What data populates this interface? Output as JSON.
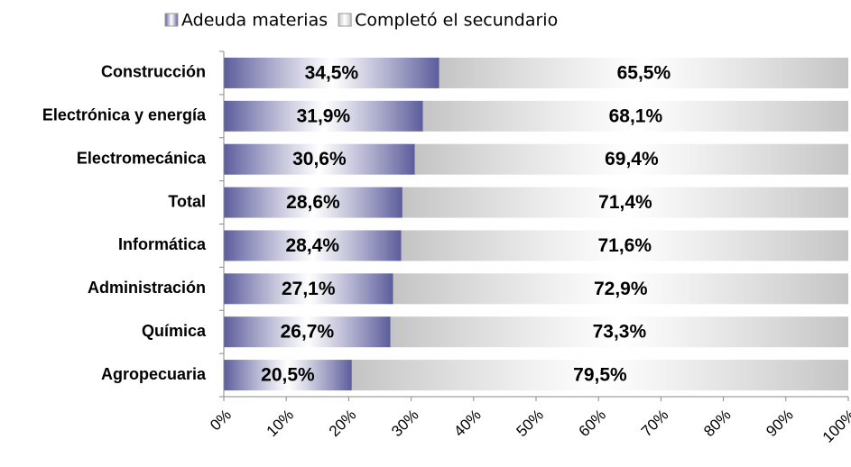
{
  "chart_data": {
    "type": "stacked_barh",
    "categories": [
      "Construcción",
      "Electrónica y energía",
      "Electromecánica",
      "Total",
      "Informática",
      "Administración",
      "Química",
      "Agropecuaria"
    ],
    "series": [
      {
        "name": "Adeuda materias",
        "color": "#5c5c9c",
        "values": [
          34.5,
          31.9,
          30.6,
          28.6,
          28.4,
          27.1,
          26.7,
          20.5
        ],
        "value_labels": [
          "34,5%",
          "31,9%",
          "30,6%",
          "28,6%",
          "28,4%",
          "27,1%",
          "26,7%",
          "20,5%"
        ]
      },
      {
        "name": "Completó el secundario",
        "color": "#c4c4c4",
        "values": [
          65.5,
          68.1,
          69.4,
          71.4,
          71.6,
          72.9,
          73.3,
          79.5
        ],
        "value_labels": [
          "65,5%",
          "68,1%",
          "69,4%",
          "71,4%",
          "71,6%",
          "72,9%",
          "73,3%",
          "79,5%"
        ]
      }
    ],
    "xlim": [
      0,
      100
    ],
    "xticks": [
      {
        "value": 0,
        "label": "0%"
      },
      {
        "value": 10,
        "label": "10%"
      },
      {
        "value": 20,
        "label": "20%"
      },
      {
        "value": 30,
        "label": "30%"
      },
      {
        "value": 40,
        "label": "40%"
      },
      {
        "value": 50,
        "label": "50%"
      },
      {
        "value": 60,
        "label": "60%"
      },
      {
        "value": 70,
        "label": "70%"
      },
      {
        "value": 80,
        "label": "80%"
      },
      {
        "value": 90,
        "label": "90%"
      },
      {
        "value": 100,
        "label": "100%"
      }
    ],
    "legend": "top"
  }
}
